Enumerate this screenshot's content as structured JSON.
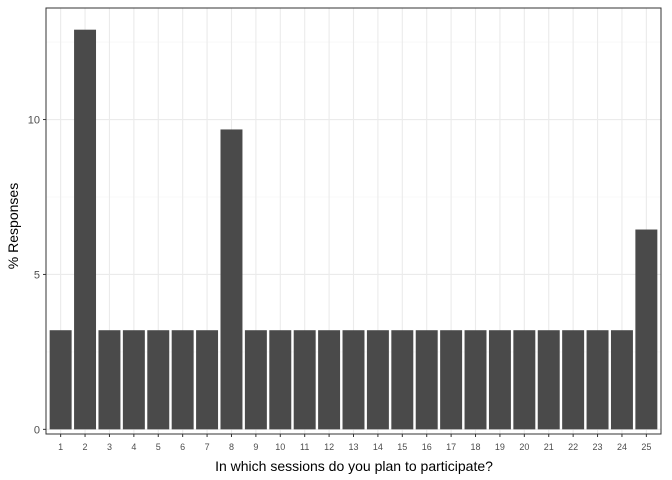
{
  "chart_data": {
    "type": "bar",
    "title": "",
    "xlabel": "In which sessions do you plan to participate?",
    "ylabel": "% Responses",
    "ylim": [
      -0.15,
      13.6
    ],
    "yticks": [
      0,
      5,
      10
    ],
    "grid": true,
    "theme": "bw",
    "colors": {
      "bar": "#4a4a4a",
      "grid_major": "#ebebeb",
      "grid_minor": "#f5f5f5",
      "panel_border": "#333333"
    },
    "categories": [
      "1",
      "2",
      "3",
      "4",
      "5",
      "6",
      "7",
      "8",
      "9",
      "10",
      "11",
      "12",
      "13",
      "14",
      "15",
      "16",
      "17",
      "18",
      "19",
      "20",
      "21",
      "22",
      "23",
      "24",
      "25"
    ],
    "values": [
      3.2,
      12.9,
      3.2,
      3.2,
      3.2,
      3.2,
      3.2,
      9.68,
      3.2,
      3.2,
      3.2,
      3.2,
      3.2,
      3.2,
      3.2,
      3.2,
      3.2,
      3.2,
      3.2,
      3.2,
      3.2,
      3.2,
      3.2,
      3.2,
      6.45
    ]
  }
}
